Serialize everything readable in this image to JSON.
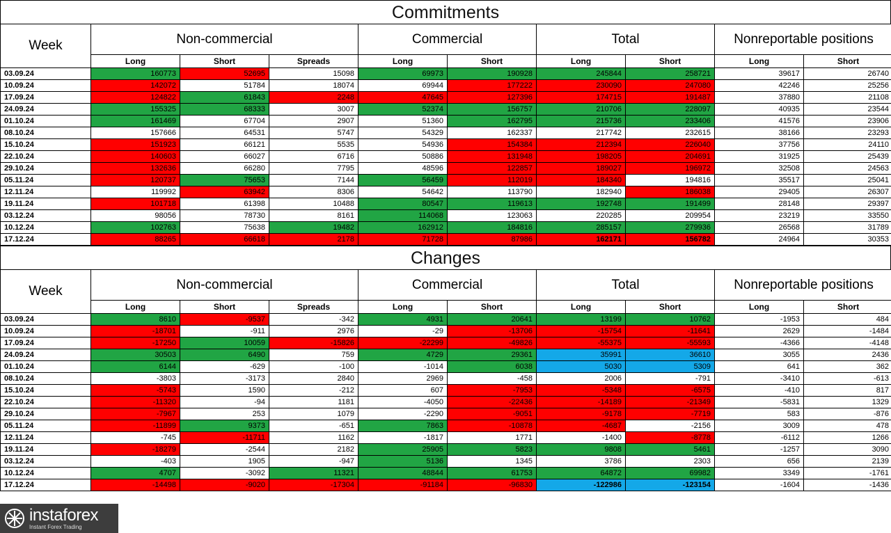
{
  "colors": {
    "up": "#21a544",
    "down": "#ff0000",
    "highlight": "#14a8e8"
  },
  "headers": {
    "week": "Week",
    "groups": [
      "Non-commercial",
      "Commercial",
      "Total",
      "Nonreportable positions"
    ],
    "subheaders": [
      "Long",
      "Short",
      "Spreads",
      "Long",
      "Short",
      "Long",
      "Short",
      "Long",
      "Short"
    ]
  },
  "commitments": {
    "title": "Commitments",
    "rows": [
      {
        "date": "03.09.24",
        "values": [
          "160773",
          "52695",
          "15098",
          "69973",
          "190928",
          "245844",
          "258721",
          "39617",
          "26740"
        ],
        "colors": [
          "g",
          "r",
          "",
          "g",
          "g",
          "g",
          "g",
          "",
          ""
        ]
      },
      {
        "date": "10.09.24",
        "values": [
          "142072",
          "51784",
          "18074",
          "69944",
          "177222",
          "230090",
          "247080",
          "42246",
          "25256"
        ],
        "colors": [
          "r",
          "",
          "",
          "",
          "r",
          "r",
          "r",
          "",
          ""
        ]
      },
      {
        "date": "17.09.24",
        "values": [
          "124822",
          "61843",
          "2248",
          "47645",
          "127396",
          "174715",
          "191487",
          "37880",
          "21108"
        ],
        "colors": [
          "r",
          "g",
          "r",
          "r",
          "r",
          "r",
          "r",
          "",
          ""
        ]
      },
      {
        "date": "24.09.24",
        "values": [
          "155325",
          "68333",
          "3007",
          "52374",
          "156757",
          "210706",
          "228097",
          "40935",
          "23544"
        ],
        "colors": [
          "g",
          "g",
          "",
          "g",
          "g",
          "g",
          "g",
          "",
          ""
        ]
      },
      {
        "date": "01.10.24",
        "values": [
          "161469",
          "67704",
          "2907",
          "51360",
          "162795",
          "215736",
          "233406",
          "41576",
          "23906"
        ],
        "colors": [
          "g",
          "",
          "",
          "",
          "g",
          "g",
          "g",
          "",
          ""
        ]
      },
      {
        "date": "08.10.24",
        "values": [
          "157666",
          "64531",
          "5747",
          "54329",
          "162337",
          "217742",
          "232615",
          "38166",
          "23293"
        ],
        "colors": [
          "",
          "",
          "",
          "",
          "",
          "",
          "",
          "",
          ""
        ]
      },
      {
        "date": "15.10.24",
        "values": [
          "151923",
          "66121",
          "5535",
          "54936",
          "154384",
          "212394",
          "226040",
          "37756",
          "24110"
        ],
        "colors": [
          "r",
          "",
          "",
          "",
          "r",
          "r",
          "r",
          "",
          ""
        ]
      },
      {
        "date": "22.10.24",
        "values": [
          "140603",
          "66027",
          "6716",
          "50886",
          "131948",
          "198205",
          "204691",
          "31925",
          "25439"
        ],
        "colors": [
          "r",
          "",
          "",
          "",
          "r",
          "r",
          "r",
          "",
          ""
        ]
      },
      {
        "date": "29.10.24",
        "values": [
          "132636",
          "66280",
          "7795",
          "48596",
          "122857",
          "189027",
          "196972",
          "32508",
          "24563"
        ],
        "colors": [
          "r",
          "",
          "",
          "",
          "r",
          "r",
          "r",
          "",
          ""
        ]
      },
      {
        "date": "05.11.24",
        "values": [
          "120737",
          "75653",
          "7144",
          "56459",
          "112019",
          "184340",
          "194816",
          "35517",
          "25041"
        ],
        "colors": [
          "r",
          "g",
          "",
          "g",
          "r",
          "r",
          "",
          "",
          ""
        ]
      },
      {
        "date": "12.11.24",
        "values": [
          "119992",
          "63942",
          "8306",
          "54642",
          "113790",
          "182940",
          "186038",
          "29405",
          "26307"
        ],
        "colors": [
          "",
          "r",
          "",
          "",
          "",
          "",
          "r",
          "",
          ""
        ]
      },
      {
        "date": "19.11.24",
        "values": [
          "101718",
          "61398",
          "10488",
          "80547",
          "119613",
          "192748",
          "191499",
          "28148",
          "29397"
        ],
        "colors": [
          "r",
          "",
          "",
          "g",
          "g",
          "g",
          "g",
          "",
          ""
        ]
      },
      {
        "date": "03.12.24",
        "values": [
          "98056",
          "78730",
          "8161",
          "114068",
          "123063",
          "220285",
          "209954",
          "23219",
          "33550"
        ],
        "colors": [
          "",
          "",
          "",
          "g",
          "",
          "",
          "",
          "",
          ""
        ]
      },
      {
        "date": "10.12.24",
        "values": [
          "102763",
          "75638",
          "19482",
          "162912",
          "184816",
          "285157",
          "279936",
          "26568",
          "31789"
        ],
        "colors": [
          "g",
          "",
          "g",
          "g",
          "g",
          "g",
          "g",
          "",
          ""
        ]
      },
      {
        "date": "17.12.24",
        "values": [
          "88265",
          "66618",
          "2178",
          "71728",
          "87986",
          "162171",
          "156782",
          "24964",
          "30353"
        ],
        "colors": [
          "r",
          "r",
          "r",
          "r",
          "r",
          "r",
          "r",
          "",
          ""
        ],
        "bold": [
          false,
          false,
          false,
          false,
          false,
          true,
          true,
          false,
          false
        ]
      }
    ]
  },
  "changes": {
    "title": "Changes",
    "rows": [
      {
        "date": "03.09.24",
        "values": [
          "8610",
          "-9537",
          "-342",
          "4931",
          "20641",
          "13199",
          "10762",
          "-1953",
          "484"
        ],
        "colors": [
          "g",
          "r",
          "",
          "g",
          "g",
          "g",
          "g",
          "",
          ""
        ]
      },
      {
        "date": "10.09.24",
        "values": [
          "-18701",
          "-911",
          "2976",
          "-29",
          "-13706",
          "-15754",
          "-11641",
          "2629",
          "-1484"
        ],
        "colors": [
          "r",
          "",
          "",
          "",
          "r",
          "r",
          "r",
          "",
          ""
        ]
      },
      {
        "date": "17.09.24",
        "values": [
          "-17250",
          "10059",
          "-15826",
          "-22299",
          "-49826",
          "-55375",
          "-55593",
          "-4366",
          "-4148"
        ],
        "colors": [
          "r",
          "g",
          "r",
          "r",
          "r",
          "r",
          "r",
          "",
          ""
        ]
      },
      {
        "date": "24.09.24",
        "values": [
          "30503",
          "6490",
          "759",
          "4729",
          "29361",
          "35991",
          "36610",
          "3055",
          "2436"
        ],
        "colors": [
          "g",
          "g",
          "",
          "g",
          "g",
          "b",
          "b",
          "",
          ""
        ]
      },
      {
        "date": "01.10.24",
        "values": [
          "6144",
          "-629",
          "-100",
          "-1014",
          "6038",
          "5030",
          "5309",
          "641",
          "362"
        ],
        "colors": [
          "g",
          "",
          "",
          "",
          "g",
          "b",
          "b",
          "",
          ""
        ]
      },
      {
        "date": "08.10.24",
        "values": [
          "-3803",
          "-3173",
          "2840",
          "2969",
          "-458",
          "2006",
          "-791",
          "-3410",
          "-613"
        ],
        "colors": [
          "",
          "",
          "",
          "",
          "",
          "",
          "",
          "",
          ""
        ]
      },
      {
        "date": "15.10.24",
        "values": [
          "-5743",
          "1590",
          "-212",
          "607",
          "-7953",
          "-5348",
          "-6575",
          "-410",
          "817"
        ],
        "colors": [
          "r",
          "",
          "",
          "",
          "r",
          "r",
          "r",
          "",
          ""
        ]
      },
      {
        "date": "22.10.24",
        "values": [
          "-11320",
          "-94",
          "1181",
          "-4050",
          "-22436",
          "-14189",
          "-21349",
          "-5831",
          "1329"
        ],
        "colors": [
          "r",
          "",
          "",
          "",
          "r",
          "r",
          "r",
          "",
          ""
        ]
      },
      {
        "date": "29.10.24",
        "values": [
          "-7967",
          "253",
          "1079",
          "-2290",
          "-9051",
          "-9178",
          "-7719",
          "583",
          "-876"
        ],
        "colors": [
          "r",
          "",
          "",
          "",
          "r",
          "r",
          "r",
          "",
          ""
        ]
      },
      {
        "date": "05.11.24",
        "values": [
          "-11899",
          "9373",
          "-651",
          "7863",
          "-10878",
          "-4687",
          "-2156",
          "3009",
          "478"
        ],
        "colors": [
          "r",
          "g",
          "",
          "g",
          "r",
          "r",
          "",
          "",
          ""
        ]
      },
      {
        "date": "12.11.24",
        "values": [
          "-745",
          "-11711",
          "1162",
          "-1817",
          "1771",
          "-1400",
          "-8778",
          "-6112",
          "1266"
        ],
        "colors": [
          "",
          "r",
          "",
          "",
          "",
          "",
          "r",
          "",
          ""
        ]
      },
      {
        "date": "19.11.24",
        "values": [
          "-18279",
          "-2544",
          "2182",
          "25905",
          "5823",
          "9808",
          "5461",
          "-1257",
          "3090"
        ],
        "colors": [
          "r",
          "",
          "",
          "g",
          "g",
          "g",
          "g",
          "",
          ""
        ]
      },
      {
        "date": "03.12.24",
        "values": [
          "-403",
          "1905",
          "-947",
          "5136",
          "1345",
          "3786",
          "2303",
          "656",
          "2139"
        ],
        "colors": [
          "",
          "",
          "",
          "g",
          "",
          "",
          "",
          "",
          ""
        ]
      },
      {
        "date": "10.12.24",
        "values": [
          "4707",
          "-3092",
          "11321",
          "48844",
          "61753",
          "64872",
          "69982",
          "3349",
          "-1761"
        ],
        "colors": [
          "g",
          "",
          "g",
          "g",
          "g",
          "g",
          "g",
          "",
          ""
        ]
      },
      {
        "date": "17.12.24",
        "values": [
          "-14498",
          "-9020",
          "-17304",
          "-91184",
          "-96830",
          "-122986",
          "-123154",
          "-1604",
          "-1436"
        ],
        "colors": [
          "r",
          "r",
          "r",
          "r",
          "r",
          "b",
          "b",
          "",
          ""
        ],
        "bold": [
          false,
          false,
          false,
          false,
          false,
          true,
          true,
          false,
          false
        ]
      }
    ]
  },
  "watermark": {
    "brand": "instaforex",
    "tagline": "Instant Forex Trading"
  }
}
